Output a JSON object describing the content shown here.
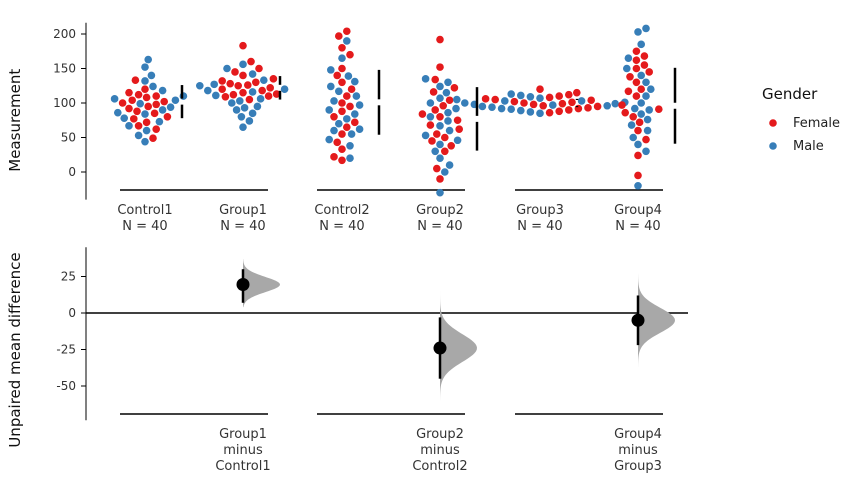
{
  "chart_data": [
    {
      "type": "scatter",
      "ylabel": "Measurement",
      "ylim": [
        -40,
        225
      ],
      "yticks": [
        0,
        50,
        100,
        150,
        200
      ],
      "groups": [
        {
          "name": "Control1",
          "n_label": "N = 40",
          "summary": {
            "mean": 102,
            "sd": 24
          }
        },
        {
          "name": "Group1",
          "n_label": "N = 40",
          "summary": {
            "mean": 122,
            "sd": 17
          }
        },
        {
          "name": "Control2",
          "n_label": "N = 40",
          "summary": {
            "mean": 101,
            "sd": 47
          }
        },
        {
          "name": "Group2",
          "n_label": "N = 40",
          "summary": {
            "mean": 77,
            "sd": 46
          }
        },
        {
          "name": "Group3",
          "n_label": "N = 40",
          "summary": {
            "mean": 100,
            "sd": 6
          }
        },
        {
          "name": "Group4",
          "n_label": "N = 40",
          "summary": {
            "mean": 96,
            "sd": 55
          }
        }
      ],
      "series": [
        {
          "name": "Female",
          "color": "#e41a1c",
          "points": {
            "Control1": [
              108,
              95,
              72,
              110,
              88,
              120,
              100,
              49,
              62,
              104,
              115,
              80,
              67,
              92,
              98,
              133,
              85,
              112,
              77,
              102
            ],
            "Group1": [
              183,
              160,
              150,
              135,
              145,
              125,
              132,
              118,
              120,
              110,
              112,
              140,
              105,
              115,
              128,
              122,
              130,
              113,
              109,
              126
            ],
            "Group2": [
              192,
              152,
              134,
              122,
              116,
              104,
              96,
              90,
              84,
              80,
              75,
              68,
              62,
              55,
              50,
              45,
              38,
              -10,
              5,
              30
            ],
            "Control2": [
              204,
              197,
              180,
              170,
              150,
              140,
              130,
              120,
              110,
              100,
              95,
              88,
              80,
              72,
              65,
              55,
              43,
              33,
              17,
              22
            ],
            "Group3": [
              120,
              115,
              112,
              110,
              108,
              106,
              104,
              102,
              100,
              99,
              98,
              96,
              95,
              93,
              92,
              90,
              88,
              86,
              105,
              101
            ],
            "Group4": [
              175,
              168,
              162,
              155,
              150,
              145,
              138,
              130,
              120,
              117,
              110,
              97,
              91,
              86,
              80,
              72,
              60,
              47,
              24,
              -5
            ]
          }
        },
        {
          "name": "Male",
          "color": "#377eb8",
          "points": {
            "Control1": [
              163,
              152,
              140,
              132,
              124,
              118,
              110,
              104,
              99,
              94,
              90,
              84,
              78,
              73,
              67,
              60,
              53,
              44,
              106,
              86
            ],
            "Group1": [
              156,
              150,
              142,
              133,
              127,
              120,
              116,
              111,
              106,
              100,
              95,
              90,
              85,
              80,
              74,
              65,
              125,
              118,
              103,
              93
            ],
            "Control2": [
              190,
              165,
              148,
              139,
              131,
              124,
              117,
              110,
              103,
              97,
              90,
              84,
              77,
              70,
              62,
              55,
              47,
              38,
              20,
              60
            ],
            "Group2": [
              135,
              130,
              124,
              115,
              107,
              100,
              92,
              86,
              80,
              74,
              67,
              60,
              53,
              46,
              40,
              30,
              20,
              10,
              0,
              -30
            ],
            "Group3": [
              113,
              111,
              109,
              107,
              105,
              103,
              101,
              100,
              99,
              97,
              96,
              94,
              92,
              91,
              89,
              87,
              85,
              103,
              98,
              95
            ],
            "Group4": [
              208,
              203,
              185,
              165,
              150,
              140,
              130,
              120,
              110,
              100,
              92,
              84,
              76,
              68,
              60,
              50,
              40,
              30,
              -20,
              90
            ]
          }
        }
      ],
      "legend": {
        "title": "Gender",
        "position": "right",
        "entries": [
          "Female",
          "Male"
        ]
      }
    },
    {
      "type": "scatter",
      "ylabel": "Unpaired mean difference",
      "ylim": [
        -70,
        45
      ],
      "yticks": [
        -50,
        -25,
        0,
        25
      ],
      "zero_line": true,
      "comparisons": [
        {
          "label_lines": [
            "Group1",
            "minus",
            "Control1"
          ],
          "aligned_with": "Group1",
          "mean_diff": 19.5,
          "ci": [
            7,
            30
          ],
          "dist_sd": 5.2,
          "dist_range": [
            4,
            37
          ]
        },
        {
          "label_lines": [
            "Group2",
            "minus",
            "Control2"
          ],
          "aligned_with": "Group2",
          "mean_diff": -24,
          "ci": [
            -45,
            -3
          ],
          "dist_sd": 9.5,
          "dist_range": [
            -60,
            15
          ]
        },
        {
          "label_lines": [
            "Group4",
            "minus",
            "Group3"
          ],
          "aligned_with": "Group4",
          "mean_diff": -5,
          "ci": [
            -22,
            12
          ],
          "dist_sd": 8.5,
          "dist_range": [
            -37,
            27
          ]
        }
      ]
    }
  ]
}
